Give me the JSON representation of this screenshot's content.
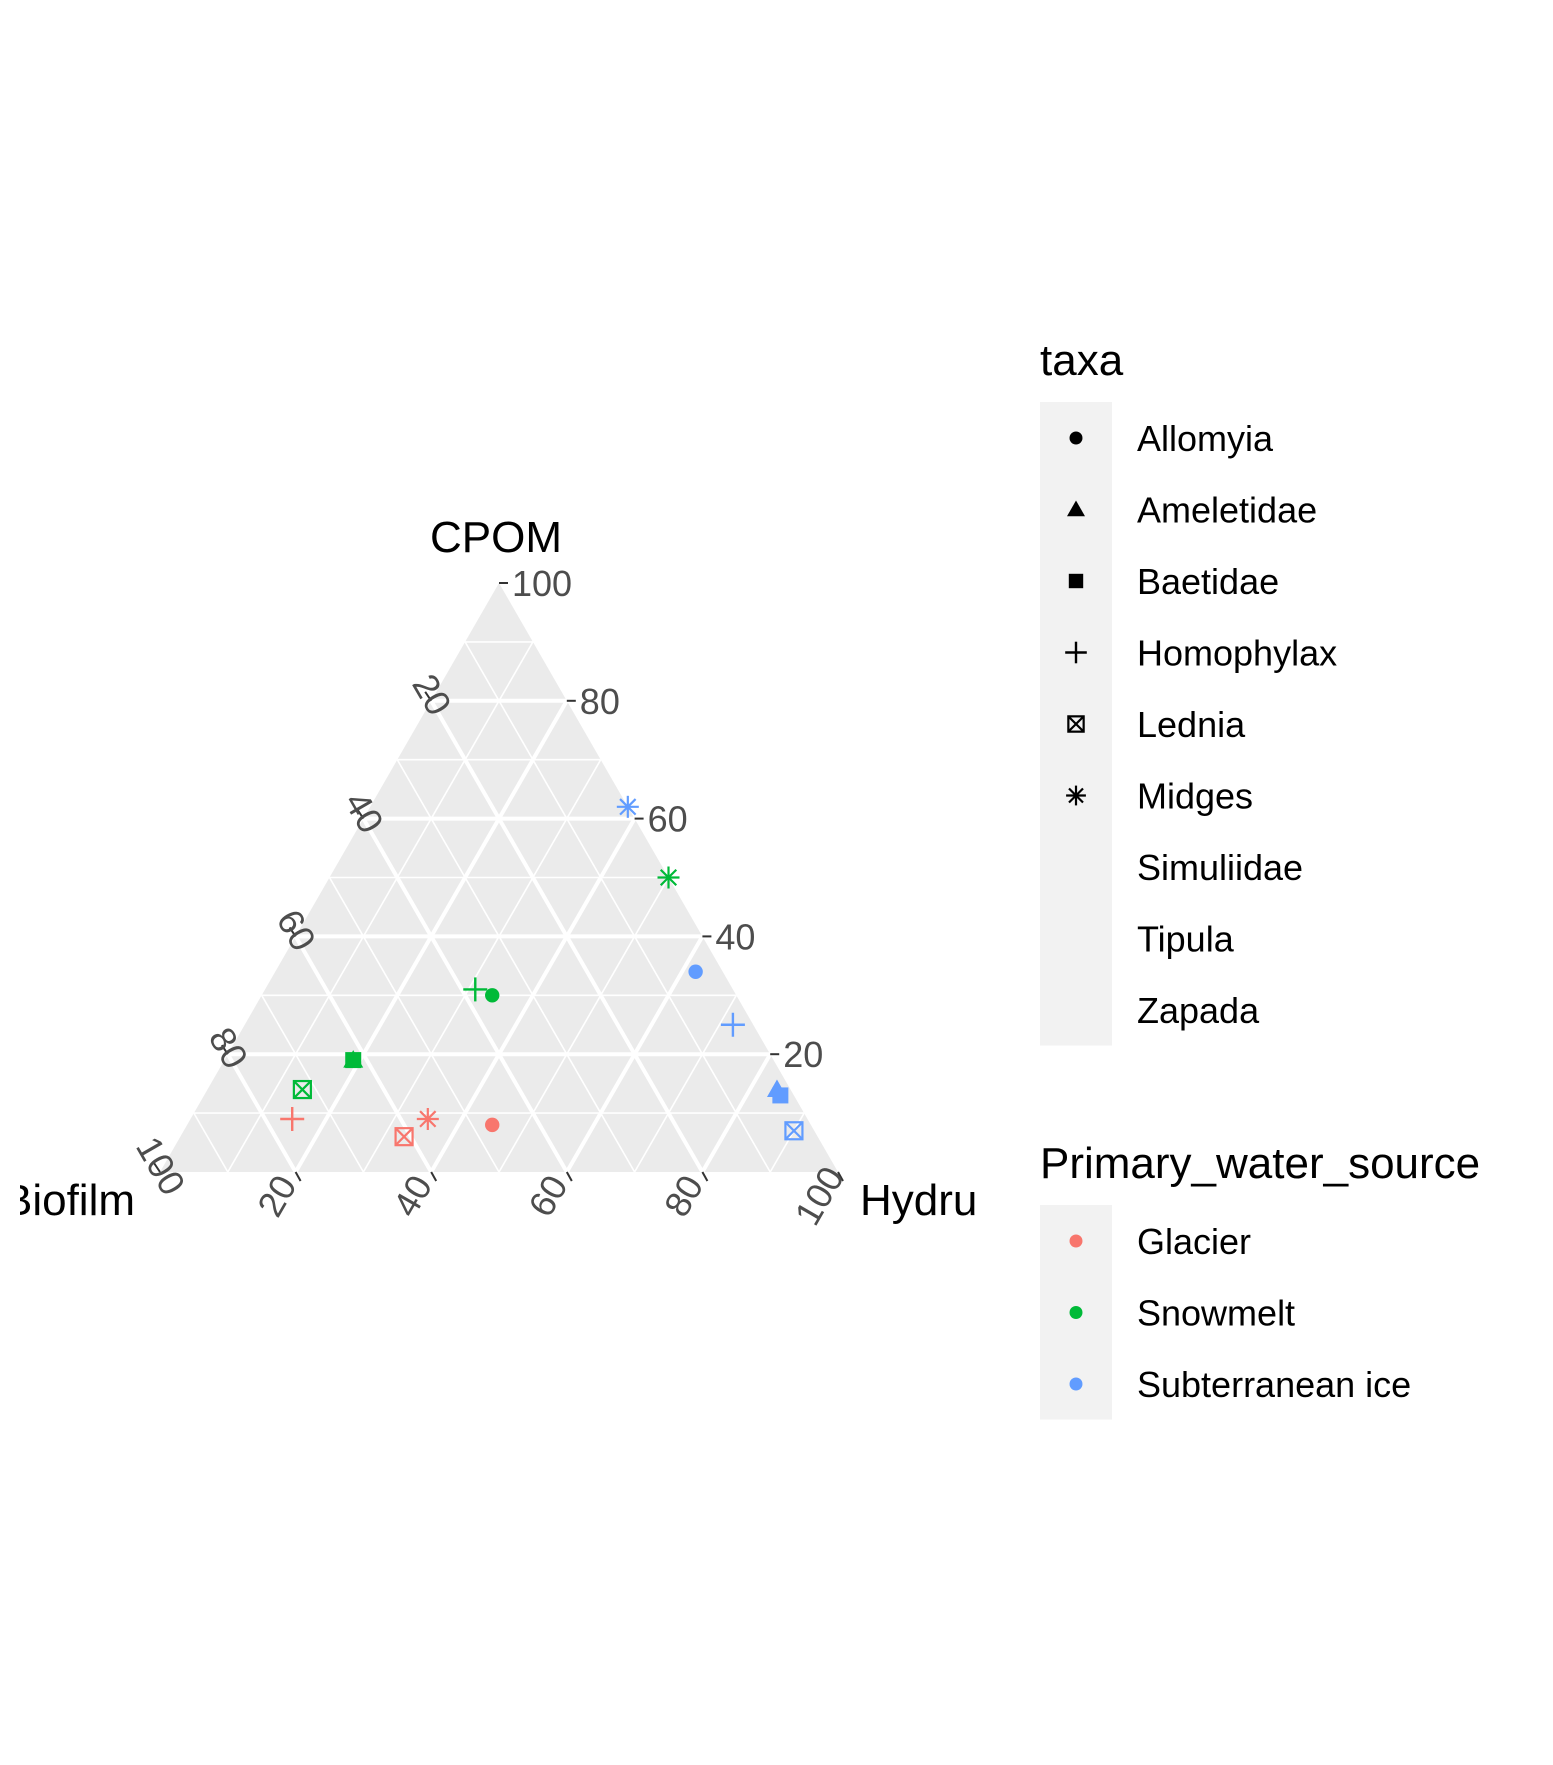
{
  "chart_data": {
    "type": "scatter",
    "subtype": "ternary",
    "axes": {
      "top": "CPOM",
      "left": "Biofilm",
      "right": "Hydrurus"
    },
    "ticks": [
      "20",
      "40",
      "60",
      "80",
      "100"
    ],
    "grid": true,
    "legend_position": "right",
    "legends": [
      {
        "title": "taxa",
        "entries": [
          "Allomyia",
          "Ameletidae",
          "Baetidae",
          "Homophylax",
          "Lednia",
          "Midges",
          "Simuliidae",
          "Tipula",
          "Zapada"
        ],
        "shapes": [
          "circle",
          "triangle",
          "square",
          "plus",
          "boxx",
          "asterisk",
          "none",
          "none",
          "none"
        ]
      },
      {
        "title": "Primary_water_source",
        "entries": [
          "Glacier",
          "Snowmelt",
          "Subterranean ice"
        ],
        "colors": [
          "#F8766D",
          "#00BA38",
          "#619CFF"
        ]
      }
    ],
    "points": [
      {
        "taxa": "Allomyia",
        "source": "Glacier",
        "CPOM": 8,
        "Hydrurus": 45,
        "Biofilm": 47
      },
      {
        "taxa": "Midges",
        "source": "Glacier",
        "CPOM": 9,
        "Hydrurus": 35,
        "Biofilm": 56
      },
      {
        "taxa": "Lednia",
        "source": "Glacier",
        "CPOM": 6,
        "Hydrurus": 33,
        "Biofilm": 61
      },
      {
        "taxa": "Homophylax",
        "source": "Glacier",
        "CPOM": 9,
        "Hydrurus": 15,
        "Biofilm": 76
      },
      {
        "taxa": "Midges",
        "source": "Snowmelt",
        "CPOM": 50,
        "Hydrurus": 50,
        "Biofilm": 0
      },
      {
        "taxa": "Homophylax",
        "source": "Snowmelt",
        "CPOM": 31,
        "Hydrurus": 31,
        "Biofilm": 38
      },
      {
        "taxa": "Allomyia",
        "source": "Snowmelt",
        "CPOM": 30,
        "Hydrurus": 34,
        "Biofilm": 36
      },
      {
        "taxa": "Baetidae",
        "source": "Snowmelt",
        "CPOM": 19,
        "Hydrurus": 19,
        "Biofilm": 62
      },
      {
        "taxa": "Ameletidae",
        "source": "Snowmelt",
        "CPOM": 19,
        "Hydrurus": 19,
        "Biofilm": 62
      },
      {
        "taxa": "Lednia",
        "source": "Snowmelt",
        "CPOM": 14,
        "Hydrurus": 14,
        "Biofilm": 72
      },
      {
        "taxa": "Midges",
        "source": "Subterranean ice",
        "CPOM": 62,
        "Hydrurus": 38,
        "Biofilm": 0
      },
      {
        "taxa": "Allomyia",
        "source": "Subterranean ice",
        "CPOM": 34,
        "Hydrurus": 62,
        "Biofilm": 4
      },
      {
        "taxa": "Homophylax",
        "source": "Subterranean ice",
        "CPOM": 25,
        "Hydrurus": 72,
        "Biofilm": 3
      },
      {
        "taxa": "Ameletidae",
        "source": "Subterranean ice",
        "CPOM": 14,
        "Hydrurus": 84,
        "Biofilm": 2
      },
      {
        "taxa": "Baetidae",
        "source": "Subterranean ice",
        "CPOM": 13,
        "Hydrurus": 85,
        "Biofilm": 2
      },
      {
        "taxa": "Lednia",
        "source": "Subterranean ice",
        "CPOM": 7,
        "Hydrurus": 90,
        "Biofilm": 3
      }
    ]
  }
}
